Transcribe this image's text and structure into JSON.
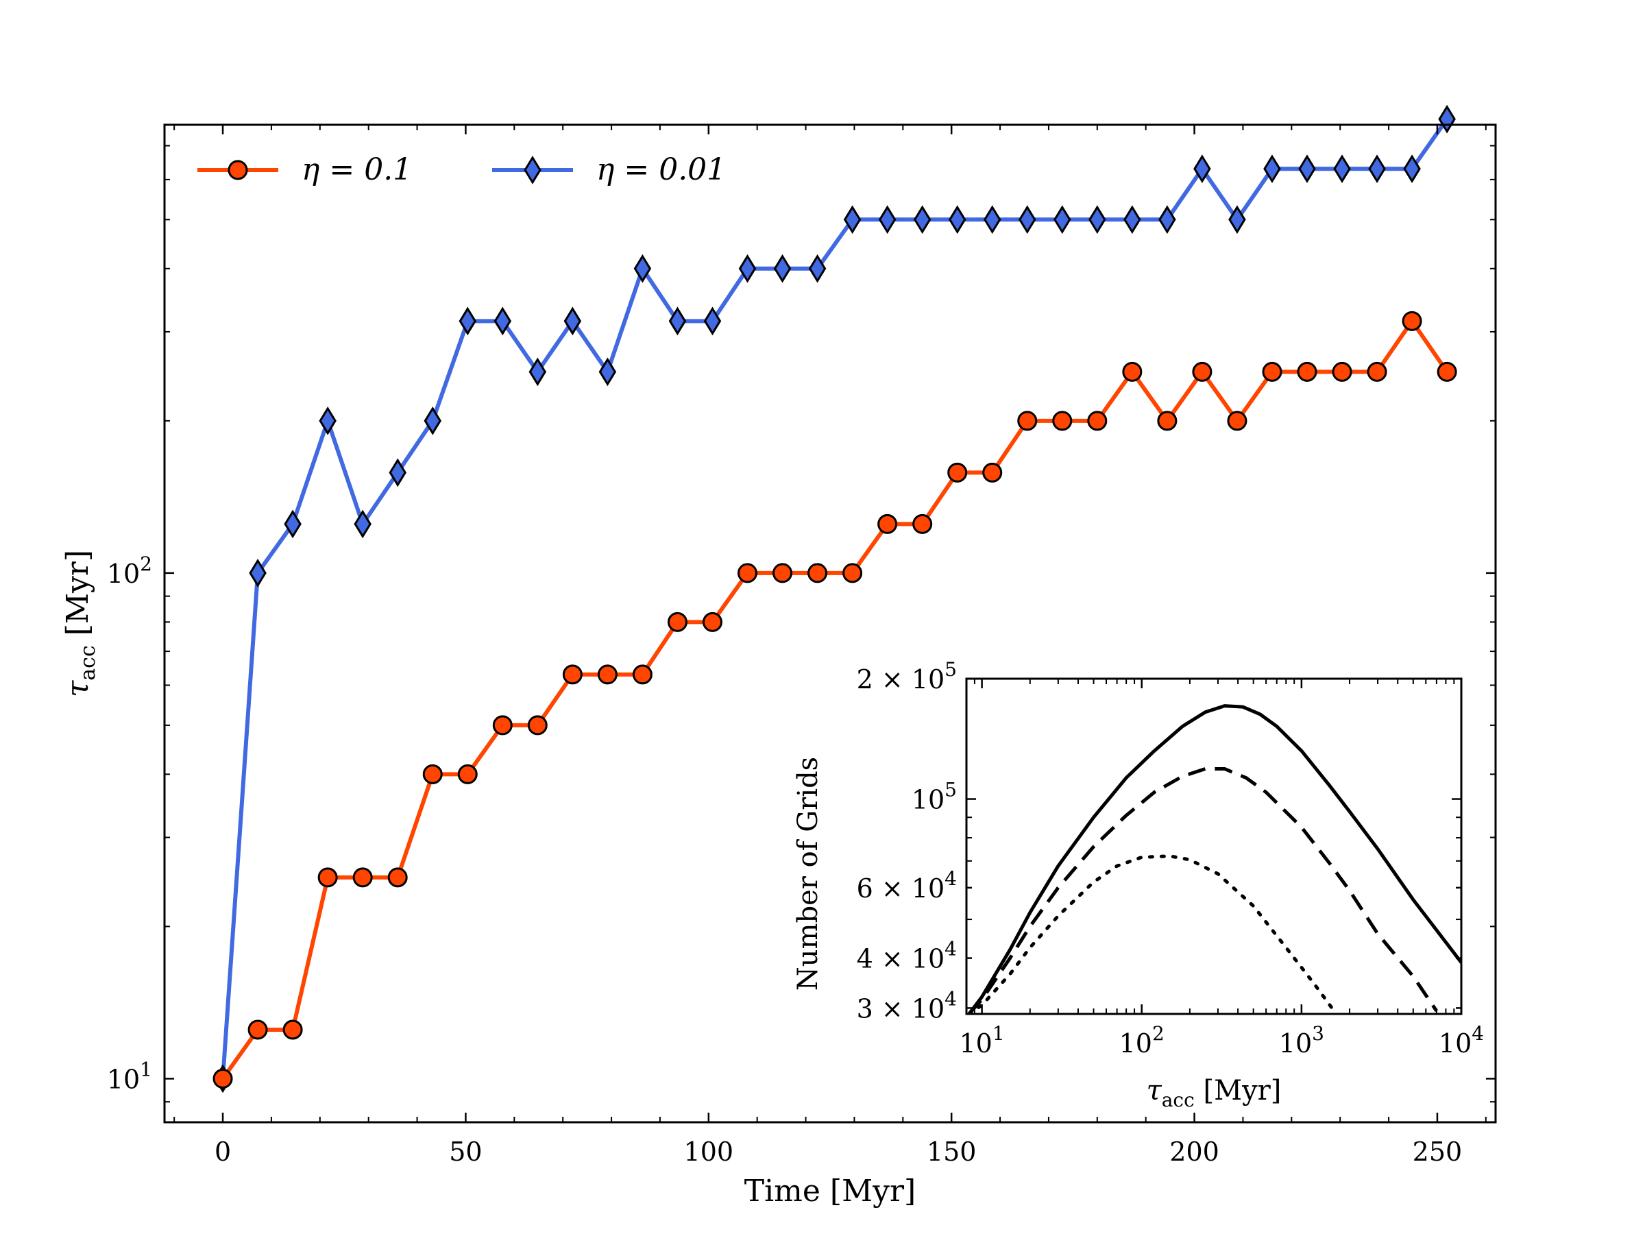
{
  "chart_data": [
    {
      "type": "line",
      "title": "",
      "xlabel": "Time [Myr]",
      "ylabel": "τacc [Myr]",
      "yscale": "log",
      "xlim": [
        -12,
        262
      ],
      "ylim": [
        8.2,
        770
      ],
      "x_ticks": [
        0,
        50,
        100,
        150,
        200,
        250
      ],
      "x_tick_labels": [
        "0",
        "50",
        "100",
        "150",
        "200",
        "250"
      ],
      "y_ticks": [
        10,
        100
      ],
      "y_tick_labels": [
        {
          "base": "10",
          "exp": "1"
        },
        {
          "base": "10",
          "exp": "2"
        }
      ],
      "legend": {
        "location": "top-left",
        "entries": [
          {
            "label": "η = 0.1",
            "series": 0
          },
          {
            "label": "η = 0.01",
            "series": 1
          }
        ]
      },
      "x": [
        0,
        7.2,
        14.4,
        21.6,
        28.8,
        36,
        43.2,
        50.4,
        57.6,
        64.8,
        72,
        79.2,
        86.4,
        93.6,
        100.8,
        108,
        115.2,
        122.4,
        129.6,
        136.8,
        144,
        151.2,
        158.4,
        165.6,
        172.8,
        180,
        187.2,
        194.4,
        201.6,
        208.8,
        216,
        223.2,
        230.4,
        237.6,
        244.8,
        252
      ],
      "series": [
        {
          "name": "η = 0.1",
          "color": "#FF4500",
          "marker": "circle",
          "values": [
            10,
            12.5,
            12.5,
            25,
            25,
            25,
            40,
            40,
            50,
            50,
            63,
            63,
            63,
            80,
            80,
            100,
            100,
            100,
            100,
            125,
            125,
            158,
            158,
            200,
            200,
            200,
            250,
            200,
            250,
            200,
            250,
            250,
            250,
            250,
            315,
            250
          ]
        },
        {
          "name": "η = 0.01",
          "color": "#4169E1",
          "marker": "diamond",
          "values": [
            10,
            100,
            125,
            200,
            125,
            158,
            200,
            315,
            315,
            250,
            315,
            250,
            400,
            315,
            315,
            400,
            400,
            400,
            500,
            500,
            500,
            500,
            500,
            500,
            500,
            500,
            500,
            500,
            630,
            500,
            630,
            630,
            630,
            630,
            630,
            790
          ]
        }
      ]
    },
    {
      "type": "line",
      "title": "",
      "xlabel": "τacc [Myr]",
      "ylabel": "Number of Grids",
      "xscale": "log",
      "yscale": "log",
      "xlim": [
        8,
        10000
      ],
      "ylim": [
        29000,
        200000
      ],
      "x_ticks": [
        10,
        100,
        1000,
        10000
      ],
      "x_tick_labels": [
        {
          "base": "10",
          "exp": "1"
        },
        {
          "base": "10",
          "exp": "2"
        },
        {
          "base": "10",
          "exp": "3"
        },
        {
          "base": "10",
          "exp": "4"
        }
      ],
      "y_ticks": [
        30000,
        40000,
        60000,
        100000,
        200000
      ],
      "y_tick_labels": [
        {
          "base": "3 × 10",
          "exp": "4"
        },
        {
          "base": "4 × 10",
          "exp": "4"
        },
        {
          "base": "6 × 10",
          "exp": "4"
        },
        {
          "base": "10",
          "exp": "5"
        },
        {
          "base": "2 × 10",
          "exp": "5"
        }
      ],
      "series": [
        {
          "name": "solid",
          "line_style": "solid",
          "x": [
            8.3,
            10,
            15,
            20,
            30,
            50,
            80,
            120,
            180,
            250,
            330,
            430,
            550,
            700,
            1000,
            1500,
            2000,
            3000,
            5000,
            7000,
            10000
          ],
          "values": [
            29000,
            32000,
            42000,
            52000,
            68000,
            90000,
            113000,
            132000,
            152000,
            165000,
            171000,
            170000,
            163000,
            152000,
            132000,
            108000,
            93000,
            75000,
            56000,
            47000,
            39000
          ]
        },
        {
          "name": "dashed",
          "line_style": "dashed",
          "x": [
            8.3,
            10,
            15,
            20,
            30,
            50,
            80,
            120,
            180,
            250,
            330,
            450,
            600,
            1000,
            1500,
            2000,
            3000,
            5000,
            7000
          ],
          "values": [
            29000,
            31500,
            40000,
            48000,
            60000,
            76000,
            91000,
            104000,
            114000,
            119000,
            119000,
            113000,
            104000,
            85000,
            69000,
            59000,
            46000,
            36000,
            29500
          ]
        },
        {
          "name": "dotted",
          "line_style": "dotted",
          "x": [
            8.3,
            10,
            15,
            20,
            30,
            50,
            70,
            100,
            150,
            200,
            300,
            500,
            800,
            1200,
            1650
          ],
          "values": [
            29000,
            30500,
            36500,
            42500,
            51000,
            62000,
            68000,
            71500,
            72000,
            70500,
            65000,
            54000,
            42500,
            34500,
            29000
          ]
        }
      ]
    }
  ]
}
